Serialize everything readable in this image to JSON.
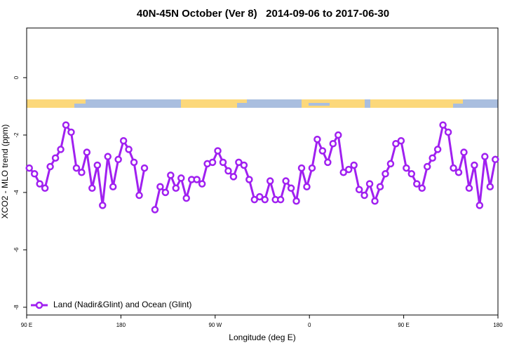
{
  "chart_data": {
    "type": "line",
    "title": "40N-45N October (Ver 8)   2014-09-06 to 2017-06-30",
    "xlabel": "Longitude (deg E)",
    "ylabel": "XCO2 - MLO trend (ppm)",
    "x": [
      92.5,
      97.5,
      102.5,
      107.5,
      112.5,
      117.5,
      122.5,
      127.5,
      132.5,
      137.5,
      142.5,
      147.5,
      152.5,
      157.5,
      162.5,
      167.5,
      172.5,
      177.5,
      182.5,
      187.5,
      192.5,
      197.5,
      202.5,
      207.5,
      212.5,
      217.5,
      222.5,
      227.5,
      232.5,
      237.5,
      242.5,
      247.5,
      252.5,
      257.5,
      262.5,
      267.5,
      272.5,
      277.5,
      282.5,
      287.5,
      292.5,
      297.5,
      302.5,
      307.5,
      312.5,
      317.5,
      322.5,
      327.5,
      332.5,
      337.5,
      342.5,
      347.5,
      352.5,
      357.5,
      362.5,
      367.5,
      372.5,
      377.5,
      382.5,
      387.5,
      392.5,
      397.5,
      402.5,
      407.5,
      412.5,
      417.5,
      422.5,
      427.5,
      432.5,
      437.5,
      442.5,
      447.5,
      452.5,
      457.5,
      462.5,
      467.5,
      472.5,
      477.5,
      482.5,
      487.5,
      492.5,
      497.5,
      502.5,
      507.5,
      512.5,
      517.5,
      522.5,
      527.5,
      532.5,
      537.5
    ],
    "series": [
      {
        "name": "Land (Nadir&Glint) and Ocean (Glint)",
        "color": "#a020f0",
        "values": [
          -3.15,
          -3.35,
          -3.7,
          -3.85,
          -3.1,
          -2.8,
          -2.5,
          -1.65,
          -1.9,
          -3.15,
          -3.3,
          -2.6,
          -3.85,
          -3.05,
          -4.45,
          -2.75,
          -3.8,
          -2.85,
          -2.2,
          -2.5,
          -2.95,
          -4.1,
          -3.15,
          null,
          -4.6,
          -3.8,
          -4.0,
          -3.4,
          -3.85,
          -3.5,
          -4.2,
          -3.55,
          -3.55,
          -3.7,
          -3.0,
          -2.95,
          -2.55,
          -2.95,
          -3.25,
          -3.45,
          -2.95,
          -3.05,
          -3.55,
          -4.25,
          -4.15,
          -4.25,
          -3.6,
          -4.25,
          -4.25,
          -3.6,
          -3.85,
          -4.3,
          -3.15,
          -3.8,
          -3.15,
          -2.15,
          -2.55,
          -2.95,
          -2.3,
          -2.0,
          -3.3,
          -3.2,
          -3.05,
          -3.9,
          -4.1,
          -3.7,
          -4.3,
          -3.8,
          -3.35,
          -3.0,
          -2.3,
          -2.2,
          -3.15,
          -3.35,
          -3.7,
          -3.85,
          -3.1,
          -2.8,
          -2.5,
          -1.65,
          -1.9,
          -3.15,
          -3.3,
          -2.6,
          -3.85,
          -3.05,
          -4.45,
          -2.75,
          -3.8,
          -2.85
        ]
      }
    ],
    "xlim": [
      90,
      540
    ],
    "xticks": [
      {
        "value": 90,
        "label": "90 E"
      },
      {
        "value": 180,
        "label": "180"
      },
      {
        "value": 270,
        "label": "90 W"
      },
      {
        "value": 360,
        "label": "0"
      },
      {
        "value": 450,
        "label": "90 E"
      },
      {
        "value": 540,
        "label": "180"
      }
    ],
    "ylim": [
      -8.27,
      1.73
    ],
    "yticks": [
      0,
      -2,
      -4,
      -6,
      -8
    ],
    "legend": "bottomleft"
  }
}
